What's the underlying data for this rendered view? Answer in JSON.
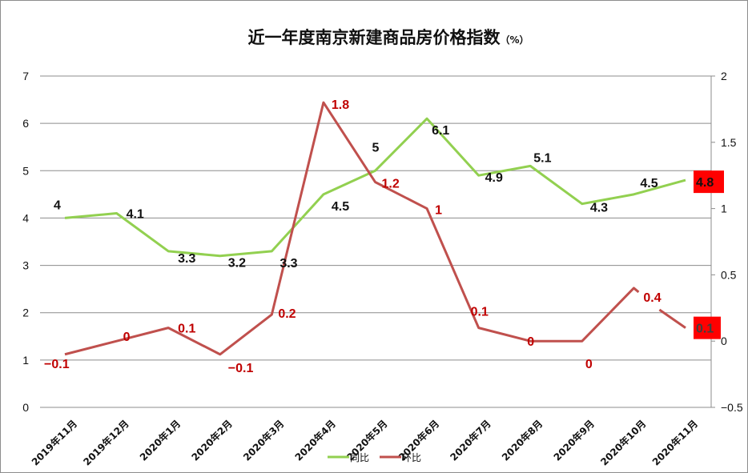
{
  "chart_data": {
    "type": "line",
    "title": "近一年度南京新建商品房价格指数",
    "title_unit": "（%）",
    "categories": [
      "2019年11月",
      "2019年12月",
      "2020年1月",
      "2020年2月",
      "2020年3月",
      "2020年4月",
      "2020年5月",
      "2020年6月",
      "2020年7月",
      "2020年8月",
      "2020年9月",
      "2020年10月",
      "2020年11月"
    ],
    "series": [
      {
        "name": "同比",
        "axis": "left",
        "color": "#92d050",
        "values": [
          4,
          4.1,
          3.3,
          3.2,
          3.3,
          4.5,
          5,
          6.1,
          4.9,
          5.1,
          4.3,
          4.5,
          4.8
        ]
      },
      {
        "name": "环比",
        "axis": "right",
        "color": "#c0504d",
        "values": [
          -0.1,
          0,
          0.1,
          -0.1,
          0.2,
          1.8,
          1.2,
          1,
          0.1,
          0,
          0,
          0.4,
          0.1
        ]
      }
    ],
    "left_axis": {
      "ylim": [
        0,
        7
      ],
      "ticks": [
        "0",
        "1",
        "2",
        "3",
        "4",
        "5",
        "6",
        "7"
      ]
    },
    "right_axis": {
      "ylim": [
        -0.5,
        2
      ],
      "ticks": [
        "−0.5",
        "0",
        "0.5",
        "1",
        "1.5",
        "2"
      ]
    },
    "grid": true,
    "legend_position": "bottom",
    "highlight_color": "#ff0000",
    "highlighted_labels": [
      "4.8",
      "0.1"
    ]
  },
  "labels": {
    "yoy": [
      "4",
      "4.1",
      "3.3",
      "3.2",
      "3.3",
      "4.5",
      "5",
      "6.1",
      "4.9",
      "5.1",
      "4.3",
      "4.5",
      "4.8"
    ],
    "mom": [
      "−0.1",
      "0",
      "0.1",
      "−0.1",
      "0.2",
      "1.8",
      "1.2",
      "1",
      "0.1",
      "0",
      "0",
      "0.4",
      "0.1"
    ]
  },
  "legend": {
    "yoy": "同比",
    "mom": "环比"
  }
}
